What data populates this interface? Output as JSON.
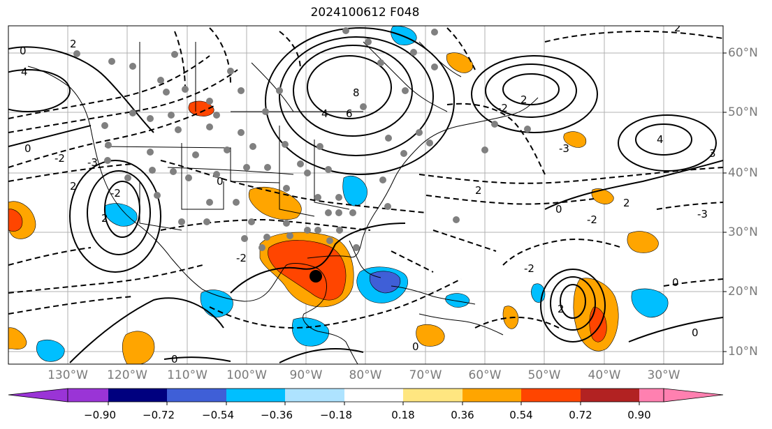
{
  "title": "2024100612 F048",
  "lat_labels": [
    "60°N",
    "50°N",
    "40°N",
    "30°N",
    "20°N",
    "10°N"
  ],
  "lon_labels": [
    "130°W",
    "120°W",
    "110°W",
    "100°W",
    "90°W",
    "80°W",
    "70°W",
    "60°W",
    "50°W",
    "40°W",
    "30°W"
  ],
  "colorbar": {
    "ticks": [
      "−0.90",
      "−0.72",
      "−0.54",
      "−0.36",
      "−0.18",
      "0.18",
      "0.36",
      "0.54",
      "0.72",
      "0.90"
    ],
    "colors": [
      "#9a34d6",
      "#00007f",
      "#3f5fd7",
      "#00bfff",
      "#aee3ff",
      "#ffffff",
      "#ffe680",
      "#ffa500",
      "#ff4500",
      "#b22222",
      "#ff80b0"
    ]
  },
  "contour_labels": [
    "0",
    "2",
    "4",
    "-2",
    "-3",
    "2",
    "0",
    "-2",
    "2",
    "6",
    "8",
    "4",
    "2",
    "-2",
    "0",
    "2",
    "-2",
    "0",
    "-3",
    "2",
    "4",
    "0",
    "-3",
    "-2",
    "0",
    "0",
    "2",
    "-2",
    "3",
    "2",
    "0"
  ],
  "colors": {
    "frame": "#000000",
    "grid": "#b0b0b0",
    "coast": "#000000",
    "marker": "#808080",
    "center": "#000000"
  }
}
